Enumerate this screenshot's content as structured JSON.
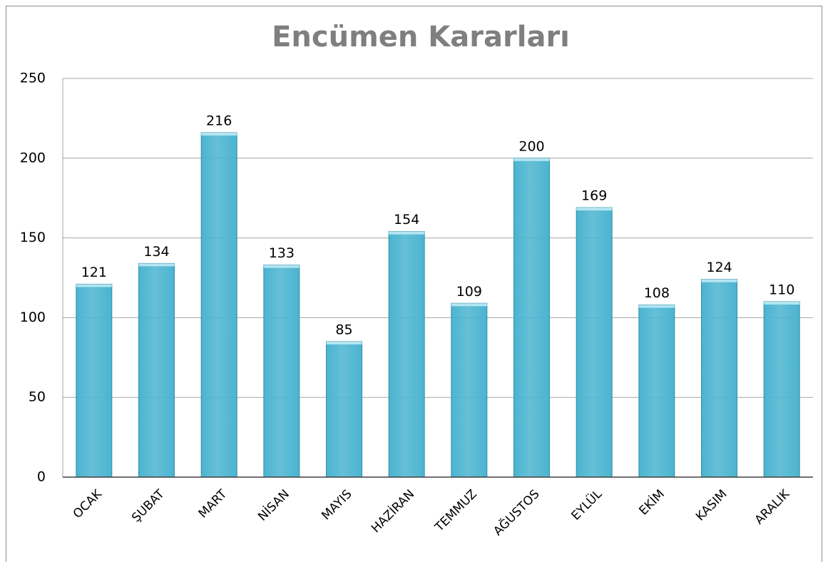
{
  "chart_data": {
    "type": "bar",
    "title": "Encümen Kararları",
    "categories": [
      "OCAK",
      "ŞUBAT",
      "MART",
      "NİSAN",
      "MAYIS",
      "HAZİRAN",
      "TEMMUZ",
      "AĞUSTOS",
      "EYLÜL",
      "EKİM",
      "KASIM",
      "ARALIK"
    ],
    "values": [
      121,
      134,
      216,
      133,
      85,
      154,
      109,
      200,
      169,
      108,
      124,
      110
    ],
    "color": "#4bb4d0",
    "ylim": [
      0,
      250
    ],
    "yticks": [
      0,
      50,
      100,
      150,
      200,
      250
    ],
    "grid": true
  }
}
